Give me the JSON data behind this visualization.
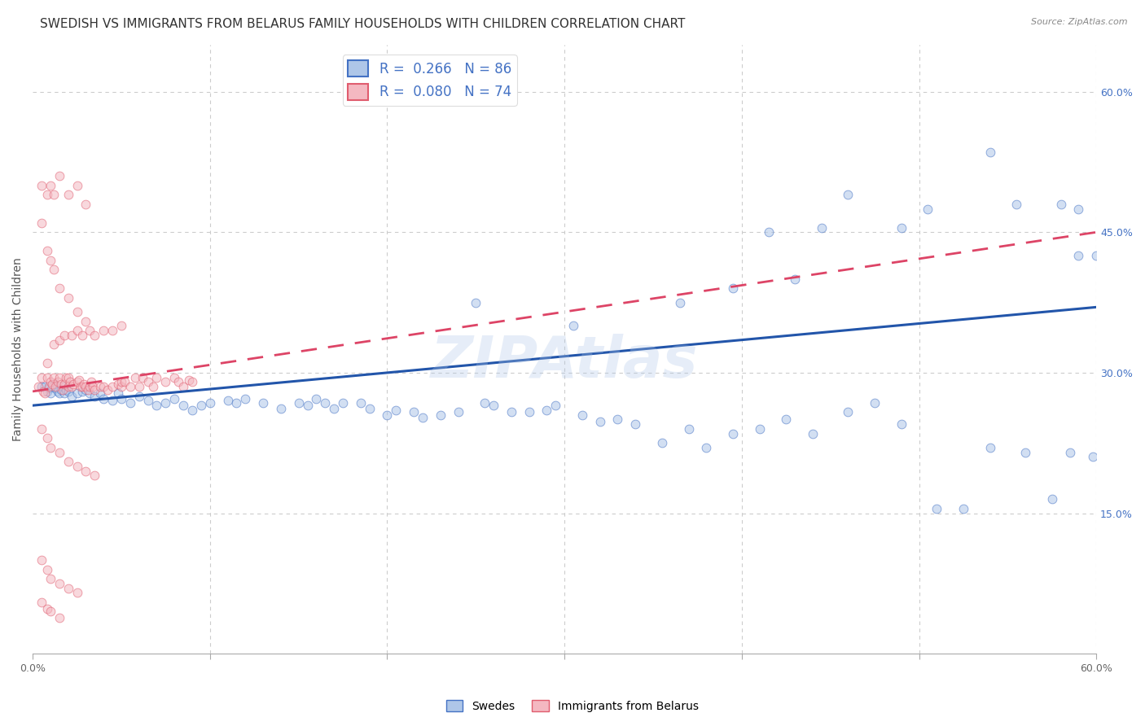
{
  "title": "SWEDISH VS IMMIGRANTS FROM BELARUS FAMILY HOUSEHOLDS WITH CHILDREN CORRELATION CHART",
  "source": "Source: ZipAtlas.com",
  "ylabel": "Family Households with Children",
  "xlim": [
    0.0,
    0.62
  ],
  "ylim": [
    -0.02,
    0.68
  ],
  "plot_xlim": [
    0.0,
    0.6
  ],
  "plot_ylim": [
    0.0,
    0.65
  ],
  "xtick_values": [
    0.0,
    0.1,
    0.2,
    0.3,
    0.4,
    0.5,
    0.6
  ],
  "xtick_labels": [
    "0.0%",
    "",
    "",
    "",
    "",
    "",
    "60.0%"
  ],
  "ytick_values": [
    0.15,
    0.3,
    0.45,
    0.6
  ],
  "ytick_labels": [
    "15.0%",
    "30.0%",
    "45.0%",
    "60.0%"
  ],
  "legend_entries": [
    {
      "label": "R =  0.266   N = 86",
      "color": "#aec6e8",
      "line_color": "#4472c4"
    },
    {
      "label": "R =  0.080   N = 74",
      "color": "#f4b8c1",
      "line_color": "#e05c6e"
    }
  ],
  "legend_labels_bottom": [
    "Swedes",
    "Immigrants from Belarus"
  ],
  "watermark": "ZIPAtlas",
  "swedes_x": [
    0.005,
    0.007,
    0.008,
    0.009,
    0.01,
    0.011,
    0.012,
    0.013,
    0.014,
    0.015,
    0.016,
    0.017,
    0.018,
    0.019,
    0.02,
    0.022,
    0.025,
    0.028,
    0.03,
    0.032,
    0.035,
    0.038,
    0.04,
    0.045,
    0.048,
    0.05,
    0.055,
    0.06,
    0.065,
    0.07,
    0.075,
    0.08,
    0.085,
    0.09,
    0.095,
    0.1,
    0.11,
    0.115,
    0.12,
    0.13,
    0.14,
    0.15,
    0.155,
    0.16,
    0.165,
    0.17,
    0.175,
    0.185,
    0.19,
    0.2,
    0.205,
    0.215,
    0.22,
    0.23,
    0.24,
    0.255,
    0.26,
    0.27,
    0.28,
    0.29,
    0.295,
    0.31,
    0.32,
    0.33,
    0.34,
    0.355,
    0.37,
    0.38,
    0.395,
    0.41,
    0.425,
    0.44,
    0.46,
    0.475,
    0.49,
    0.51,
    0.525,
    0.54,
    0.56,
    0.575,
    0.585,
    0.598,
    0.43,
    0.25,
    0.365,
    0.305
  ],
  "swedes_y": [
    0.285,
    0.285,
    0.28,
    0.283,
    0.278,
    0.285,
    0.288,
    0.283,
    0.28,
    0.278,
    0.282,
    0.285,
    0.278,
    0.282,
    0.28,
    0.275,
    0.278,
    0.28,
    0.282,
    0.278,
    0.275,
    0.278,
    0.272,
    0.27,
    0.278,
    0.272,
    0.268,
    0.275,
    0.27,
    0.265,
    0.268,
    0.272,
    0.265,
    0.26,
    0.265,
    0.268,
    0.27,
    0.268,
    0.272,
    0.268,
    0.262,
    0.268,
    0.265,
    0.272,
    0.268,
    0.262,
    0.268,
    0.268,
    0.262,
    0.255,
    0.26,
    0.258,
    0.252,
    0.255,
    0.258,
    0.268,
    0.265,
    0.258,
    0.258,
    0.26,
    0.265,
    0.255,
    0.248,
    0.25,
    0.245,
    0.225,
    0.24,
    0.22,
    0.235,
    0.24,
    0.25,
    0.235,
    0.258,
    0.268,
    0.245,
    0.155,
    0.155,
    0.22,
    0.215,
    0.165,
    0.215,
    0.21,
    0.4,
    0.375,
    0.375,
    0.35
  ],
  "swedes_high_x": [
    0.54,
    0.555,
    0.58,
    0.59,
    0.6,
    0.49,
    0.505,
    0.395,
    0.415,
    0.445,
    0.46,
    0.59
  ],
  "swedes_high_y": [
    0.535,
    0.48,
    0.48,
    0.425,
    0.425,
    0.455,
    0.475,
    0.39,
    0.45,
    0.455,
    0.49,
    0.475
  ],
  "belarus_x": [
    0.003,
    0.005,
    0.006,
    0.007,
    0.008,
    0.008,
    0.009,
    0.01,
    0.011,
    0.012,
    0.013,
    0.014,
    0.015,
    0.016,
    0.017,
    0.018,
    0.019,
    0.02,
    0.02,
    0.021,
    0.022,
    0.023,
    0.025,
    0.026,
    0.027,
    0.028,
    0.029,
    0.03,
    0.031,
    0.032,
    0.033,
    0.034,
    0.035,
    0.038,
    0.04,
    0.042,
    0.045,
    0.048,
    0.05,
    0.05,
    0.052,
    0.055,
    0.058,
    0.06,
    0.062,
    0.065,
    0.068,
    0.07,
    0.075,
    0.08,
    0.082,
    0.085,
    0.088,
    0.09,
    0.012,
    0.015,
    0.018,
    0.022,
    0.025,
    0.028,
    0.032,
    0.035,
    0.04,
    0.045,
    0.05,
    0.005,
    0.008,
    0.01,
    0.012,
    0.015,
    0.02,
    0.025,
    0.03
  ],
  "belarus_y": [
    0.285,
    0.295,
    0.28,
    0.278,
    0.295,
    0.31,
    0.285,
    0.29,
    0.288,
    0.295,
    0.285,
    0.29,
    0.295,
    0.288,
    0.282,
    0.288,
    0.295,
    0.285,
    0.295,
    0.29,
    0.285,
    0.288,
    0.29,
    0.292,
    0.285,
    0.285,
    0.288,
    0.285,
    0.282,
    0.285,
    0.29,
    0.285,
    0.282,
    0.285,
    0.285,
    0.282,
    0.285,
    0.288,
    0.285,
    0.29,
    0.29,
    0.285,
    0.295,
    0.285,
    0.295,
    0.29,
    0.285,
    0.295,
    0.29,
    0.295,
    0.29,
    0.285,
    0.292,
    0.29,
    0.33,
    0.335,
    0.34,
    0.34,
    0.345,
    0.34,
    0.345,
    0.34,
    0.345,
    0.345,
    0.35,
    0.5,
    0.49,
    0.5,
    0.49,
    0.51,
    0.49,
    0.5,
    0.48
  ],
  "belarus_scatter_extra": [
    [
      0.005,
      0.46
    ],
    [
      0.008,
      0.43
    ],
    [
      0.01,
      0.42
    ],
    [
      0.012,
      0.41
    ],
    [
      0.015,
      0.39
    ],
    [
      0.02,
      0.38
    ],
    [
      0.025,
      0.365
    ],
    [
      0.03,
      0.355
    ],
    [
      0.005,
      0.24
    ],
    [
      0.008,
      0.23
    ],
    [
      0.01,
      0.22
    ],
    [
      0.015,
      0.215
    ],
    [
      0.02,
      0.205
    ],
    [
      0.025,
      0.2
    ],
    [
      0.03,
      0.195
    ],
    [
      0.035,
      0.19
    ],
    [
      0.005,
      0.1
    ],
    [
      0.008,
      0.09
    ],
    [
      0.01,
      0.08
    ],
    [
      0.015,
      0.075
    ],
    [
      0.02,
      0.07
    ],
    [
      0.025,
      0.065
    ],
    [
      0.005,
      0.055
    ],
    [
      0.008,
      0.048
    ],
    [
      0.01,
      0.045
    ],
    [
      0.015,
      0.038
    ]
  ],
  "dot_size": 60,
  "dot_alpha": 0.55,
  "swedes_color": "#aec6e8",
  "swedes_edge_color": "#4472c4",
  "belarus_color": "#f4b8c1",
  "belarus_edge_color": "#e05c6e",
  "swedes_line_color": "#2255aa",
  "belarus_line_color": "#dd4466",
  "grid_color": "#cccccc",
  "bg_color": "#ffffff",
  "title_fontsize": 11,
  "axis_label_fontsize": 10,
  "tick_fontsize": 9,
  "legend_fontsize": 12,
  "watermark_color": "#aec6e8",
  "watermark_fontsize": 52,
  "watermark_alpha": 0.3
}
